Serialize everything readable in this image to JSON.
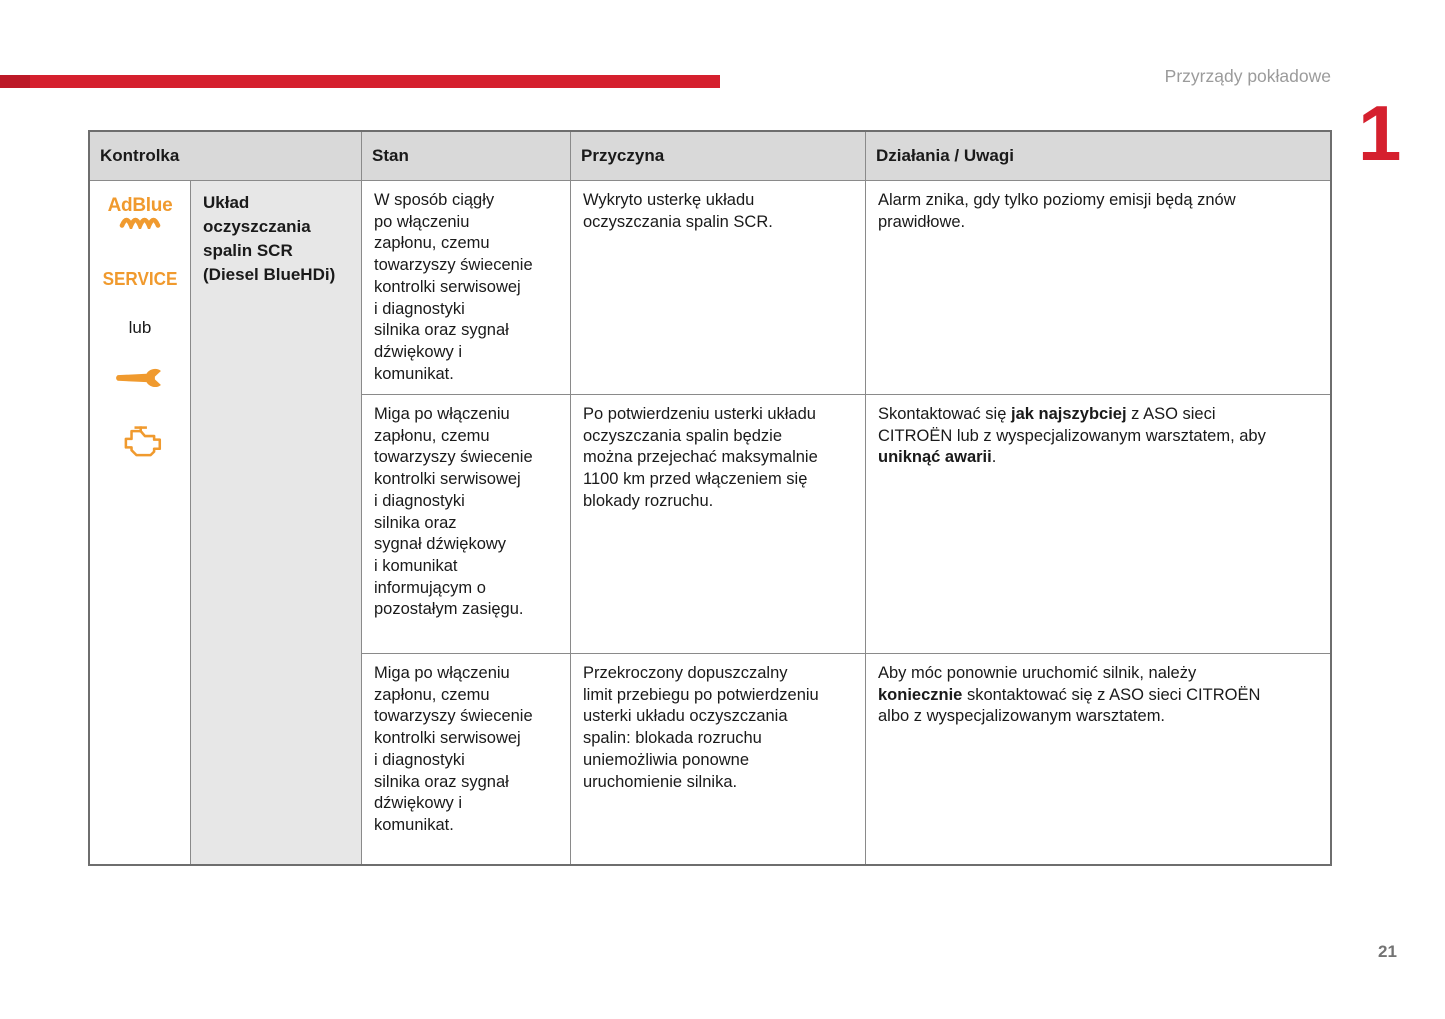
{
  "theme": {
    "accent-red": "#d5202e",
    "accent-red-dark": "#a81422",
    "icon-orange": "#f09a2e",
    "header-gray-bg": "#d9d9d9",
    "desc-gray-bg": "#e7e7e7",
    "border-gray": "#8a8a8a",
    "muted-gray": "#9b9b9b",
    "pagenum-gray": "#737373"
  },
  "page": {
    "header_title": "Przyrządy pokładowe",
    "chapter_number": "1",
    "page_number": "21"
  },
  "table": {
    "headers": {
      "kontrolka": "Kontrolka",
      "stan": "Stan",
      "przyczyna": "Przyczyna",
      "dzialania": "Działania / Uwagi"
    },
    "indicator": {
      "adblue_label": "AdBlue",
      "service_label": "SERVICE",
      "or_label": "lub",
      "icon_names": [
        "adblue-icon",
        "service-lamp",
        "wrench-icon",
        "engine-icon"
      ],
      "system_name": "Układ\noczyszczania\nspalin SCR\n(Diesel BlueHDi)"
    },
    "rows": [
      {
        "stan": "W sposób ciągły\npo włączeniu\nzapłonu, czemu\ntowarzyszy świecenie\nkontrolki serwisowej\ni diagnostyki\nsilnika oraz sygnał\ndźwiękowy i\nkomunikat.",
        "przyczyna": "Wykryto usterkę układu\noczyszczania spalin SCR.",
        "dzialania": [
          {
            "t": "Alarm znika, gdy tylko poziomy emisji będą znów\nprawidłowe.",
            "b": false
          }
        ]
      },
      {
        "stan": "Miga po włączeniu\nzapłonu, czemu\ntowarzyszy świecenie\nkontrolki serwisowej\ni diagnostyki\nsilnika oraz\nsygnał dźwiękowy\ni komunikat\ninformującym o\npozostałym zasięgu.",
        "przyczyna": "Po potwierdzeniu usterki układu\noczyszczania spalin będzie\nmożna przejechać maksymalnie\n1100 km przed włączeniem się\nblokady rozruchu.",
        "dzialania": [
          {
            "t": "Skontaktować się ",
            "b": false
          },
          {
            "t": "jak najszybciej",
            "b": true
          },
          {
            "t": " z ASO sieci\nCITROËN lub z wyspecjalizowanym warsztatem, aby\n",
            "b": false
          },
          {
            "t": "uniknąć awarii",
            "b": true
          },
          {
            "t": ".",
            "b": false
          }
        ]
      },
      {
        "stan": "Miga po włączeniu\nzapłonu, czemu\ntowarzyszy świecenie\nkontrolki serwisowej\ni diagnostyki\nsilnika oraz sygnał\ndźwiękowy i\nkomunikat.",
        "przyczyna": "Przekroczony dopuszczalny\nlimit przebiegu po potwierdzeniu\nusterki układu oczyszczania\nspalin: blokada rozruchu\nuniemożliwia ponowne\nuruchomienie silnika.",
        "dzialania": [
          {
            "t": "Aby móc ponownie uruchomić silnik, należy\n",
            "b": false
          },
          {
            "t": "koniecznie",
            "b": true
          },
          {
            "t": " skontaktować się z ASO sieci CITROËN\nalbo z wyspecjalizowanym warsztatem.",
            "b": false
          }
        ]
      }
    ]
  }
}
